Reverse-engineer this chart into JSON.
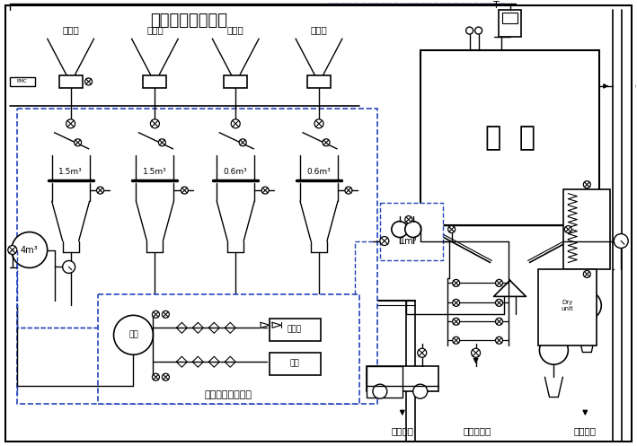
{
  "title": "浓相气力输送系统",
  "bg_color": "#ffffff",
  "line_color": "#000000",
  "dash_color": "#2244bb",
  "text_color": "#000000",
  "tank_labels": [
    "1.5m³",
    "1.5m³",
    "0.6m³",
    "0.6m³"
  ],
  "field_labels": [
    "一电场",
    "二电场",
    "三电场",
    "四电场"
  ],
  "hui_ku_label": "灰  库",
  "supply_label": "气力输送供气系统",
  "zong_guan_label": "总罐",
  "kong_ya_ji_label": "空压机",
  "bei_yong_label": "备用",
  "wet_label": "湿灰装车",
  "pressure_label": "压力水进口",
  "dry_label": "干灰装车",
  "tank_4m_label": "4m³",
  "tank_1m_label": "1m³"
}
